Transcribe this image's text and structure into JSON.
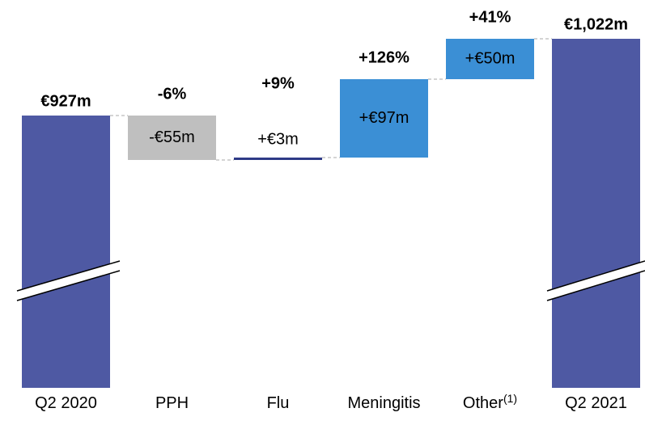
{
  "chart_data": {
    "type": "waterfall",
    "categories": [
      "Q2 2020",
      "PPH",
      "Flu",
      "Meningitis",
      "Other",
      "Q2 2021"
    ],
    "category_notes": [
      null,
      null,
      null,
      null,
      "(1)",
      null
    ],
    "values": [
      927,
      -55,
      3,
      97,
      50,
      1022
    ],
    "value_labels": [
      "€927m",
      "-€55m",
      "+€3m",
      "+€97m",
      "+€50m",
      "€1,022m"
    ],
    "growth_labels": [
      null,
      "-6%",
      "+9%",
      "+126%",
      "+41%",
      null
    ],
    "measure": [
      "total",
      "relative",
      "relative",
      "relative",
      "relative",
      "total"
    ],
    "colors": [
      "#4e59a3",
      "#bfbfbf",
      "#2e3a87",
      "#3b8fd5",
      "#3b8fd5",
      "#4e59a3"
    ],
    "ylim": [
      590,
      1070
    ],
    "axis_break": true
  }
}
